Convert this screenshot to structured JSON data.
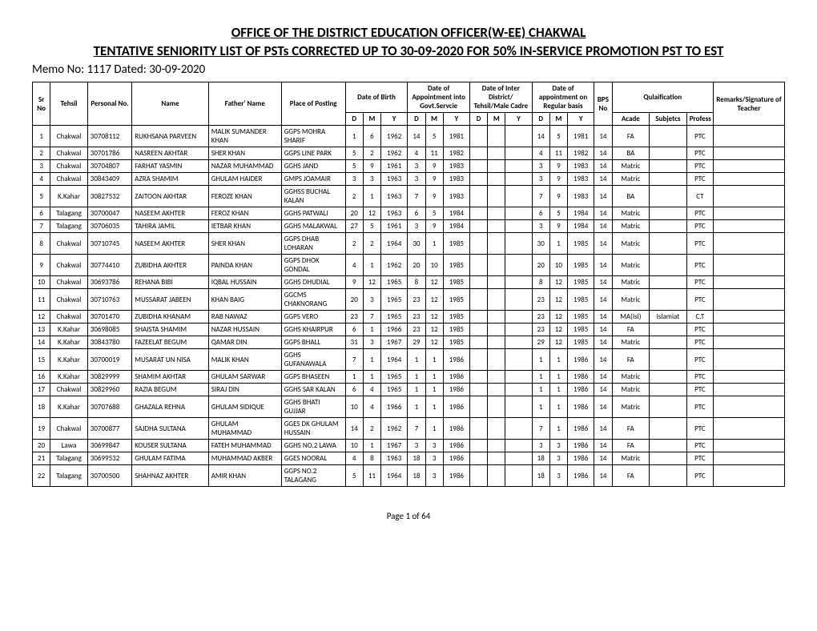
{
  "header": {
    "title": "OFFICE OF THE DISTRICT EDUCATION OFFICER(W-EE) CHAKWAL",
    "subtitle": "TENTATIVE SENIORITY LIST OF PSTs CORRECTED UP TO 30-09-2020 FOR 50% IN-SERVICE PROMOTION PST TO EST",
    "memo": "Memo No:  1117   Dated:   30-09-2020"
  },
  "columns": {
    "sr": "Sr No",
    "tehsil": "Tehsil",
    "pno": "Personal No.",
    "name": "Name",
    "father": "Father' Name",
    "place": "Place of Posting",
    "dob": "Date of Birth",
    "doa_govt": "Date of Appointment into Govt.Servcie",
    "doa_cadre": "Date of Inter District/ Tehsil/Male Cadre",
    "doa_reg": "Date of appointment on Regular basis",
    "bps": "BPS No",
    "qual": "Qulaification",
    "remarks": "Remarks/Signature of Teacher",
    "d": "D",
    "m": "M",
    "y": "Y",
    "acade": "Acade",
    "subj": "Subjetcs",
    "prof": "Profess"
  },
  "rows": [
    {
      "sr": "1",
      "tehsil": "Chakwal",
      "pno": "30708112",
      "name": "RUKHSANA PARVEEN",
      "father": "MALIK SUMANDER KHAN",
      "place": "GGPS MOHRA SHARIF",
      "dob": [
        "1",
        "6",
        "1962"
      ],
      "govt": [
        "14",
        "5",
        "1981"
      ],
      "cadre": [
        "",
        "",
        ""
      ],
      "reg": [
        "14",
        "5",
        "1981"
      ],
      "bps": "14",
      "acade": "FA",
      "subj": "",
      "prof": "PTC"
    },
    {
      "sr": "2",
      "tehsil": "Chakwal",
      "pno": "30701786",
      "name": "NASREEN AKHTAR",
      "father": "SHER KHAN",
      "place": "GGPS LINE PARK",
      "dob": [
        "5",
        "2",
        "1962"
      ],
      "govt": [
        "4",
        "11",
        "1982"
      ],
      "cadre": [
        "",
        "",
        ""
      ],
      "reg": [
        "4",
        "11",
        "1982"
      ],
      "bps": "14",
      "acade": "BA",
      "subj": "",
      "prof": "PTC"
    },
    {
      "sr": "3",
      "tehsil": "Chakwal",
      "pno": "30704807",
      "name": "FARHAT YASMIN",
      "father": "NAZAR MUHAMMAD",
      "place": "GGHS JAND",
      "dob": [
        "5",
        "9",
        "1961"
      ],
      "govt": [
        "3",
        "9",
        "1983"
      ],
      "cadre": [
        "",
        "",
        ""
      ],
      "reg": [
        "3",
        "9",
        "1983"
      ],
      "bps": "14",
      "acade": "Matric",
      "subj": "",
      "prof": "PTC"
    },
    {
      "sr": "4",
      "tehsil": "Chakwal",
      "pno": "30843409",
      "name": "AZRA SHAMIM",
      "father": "GHULAM HAIDER",
      "place": "GMPS JOAMAIR",
      "dob": [
        "3",
        "3",
        "1963"
      ],
      "govt": [
        "3",
        "9",
        "1983"
      ],
      "cadre": [
        "",
        "",
        ""
      ],
      "reg": [
        "3",
        "9",
        "1983"
      ],
      "bps": "14",
      "acade": "Matric",
      "subj": "",
      "prof": "PTC"
    },
    {
      "sr": "5",
      "tehsil": "K.Kahar",
      "pno": "30827532",
      "name": "ZAITOON AKHTAR",
      "father": "FEROZE KHAN",
      "place": "GGHSS BUCHAL KALAN",
      "dob": [
        "2",
        "1",
        "1963"
      ],
      "govt": [
        "7",
        "9",
        "1983"
      ],
      "cadre": [
        "",
        "",
        ""
      ],
      "reg": [
        "7",
        "9",
        "1983"
      ],
      "bps": "14",
      "acade": "BA",
      "subj": "",
      "prof": "CT"
    },
    {
      "sr": "6",
      "tehsil": "Talagang",
      "pno": "30700047",
      "name": "NASEEM AKHTER",
      "father": "FEROZ KHAN",
      "place": "GGHS PATWALI",
      "dob": [
        "20",
        "12",
        "1963"
      ],
      "govt": [
        "6",
        "5",
        "1984"
      ],
      "cadre": [
        "",
        "",
        ""
      ],
      "reg": [
        "6",
        "5",
        "1984"
      ],
      "bps": "14",
      "acade": "Matric",
      "subj": "",
      "prof": "PTC"
    },
    {
      "sr": "7",
      "tehsil": "Talagang",
      "pno": "30706035",
      "name": "TAHIRA JAMIL",
      "father": "IETBAR KHAN",
      "place": "GGHS MALAKWAL",
      "dob": [
        "27",
        "5",
        "1961"
      ],
      "govt": [
        "3",
        "9",
        "1984"
      ],
      "cadre": [
        "",
        "",
        ""
      ],
      "reg": [
        "3",
        "9",
        "1984"
      ],
      "bps": "14",
      "acade": "Matric",
      "subj": "",
      "prof": "PTC"
    },
    {
      "sr": "8",
      "tehsil": "Chakwal",
      "pno": "30710745",
      "name": "NASEEM AKHTER",
      "father": "SHER KHAN",
      "place": "GGPS DHAB LOHARAN",
      "dob": [
        "2",
        "2",
        "1964"
      ],
      "govt": [
        "30",
        "1",
        "1985"
      ],
      "cadre": [
        "",
        "",
        ""
      ],
      "reg": [
        "30",
        "1",
        "1985"
      ],
      "bps": "14",
      "acade": "Matric",
      "subj": "",
      "prof": "PTC"
    },
    {
      "sr": "9",
      "tehsil": "Chakwal",
      "pno": "30774410",
      "name": "ZUBIDHA AKHTER",
      "father": "PAINDA KHAN",
      "place": "GGPS DHOK GONDAL",
      "dob": [
        "4",
        "1",
        "1962"
      ],
      "govt": [
        "20",
        "10",
        "1985"
      ],
      "cadre": [
        "",
        "",
        ""
      ],
      "reg": [
        "20",
        "10",
        "1985"
      ],
      "bps": "14",
      "acade": "Matric",
      "subj": "",
      "prof": "PTC"
    },
    {
      "sr": "10",
      "tehsil": "Chakwal",
      "pno": "30693786",
      "name": "REHANA BIBI",
      "father": "IQBAL HUSSAIN",
      "place": "GGHS DHUDIAL",
      "dob": [
        "9",
        "12",
        "1965"
      ],
      "govt": [
        "8",
        "12",
        "1985"
      ],
      "cadre": [
        "",
        "",
        ""
      ],
      "reg": [
        "8",
        "12",
        "1985"
      ],
      "bps": "14",
      "acade": "Matric",
      "subj": "",
      "prof": "PTC"
    },
    {
      "sr": "11",
      "tehsil": "Chakwal",
      "pno": "30710763",
      "name": "MUSSARAT JABEEN",
      "father": "KHAN BAIG",
      "place": "GGCMS CHAKNORANG",
      "dob": [
        "20",
        "3",
        "1965"
      ],
      "govt": [
        "23",
        "12",
        "1985"
      ],
      "cadre": [
        "",
        "",
        ""
      ],
      "reg": [
        "23",
        "12",
        "1985"
      ],
      "bps": "14",
      "acade": "Matric",
      "subj": "",
      "prof": "PTC"
    },
    {
      "sr": "12",
      "tehsil": "Chakwal",
      "pno": "30701470",
      "name": "ZUBIDHA KHANAM",
      "father": "RAB NAWAZ",
      "place": "GGPS VERO",
      "dob": [
        "23",
        "7",
        "1965"
      ],
      "govt": [
        "23",
        "12",
        "1985"
      ],
      "cadre": [
        "",
        "",
        ""
      ],
      "reg": [
        "23",
        "12",
        "1985"
      ],
      "bps": "14",
      "acade": "MA(Isl)",
      "subj": "Islamiat",
      "prof": "C.T"
    },
    {
      "sr": "13",
      "tehsil": "K.Kahar",
      "pno": "30698085",
      "name": "SHAISTA SHAMIM",
      "father": "NAZAR HUSSAIN",
      "place": "GGHS KHAIRPUR",
      "dob": [
        "6",
        "1",
        "1966"
      ],
      "govt": [
        "23",
        "12",
        "1985"
      ],
      "cadre": [
        "",
        "",
        ""
      ],
      "reg": [
        "23",
        "12",
        "1985"
      ],
      "bps": "14",
      "acade": "FA",
      "subj": "",
      "prof": "PTC"
    },
    {
      "sr": "14",
      "tehsil": "K.Kahar",
      "pno": "30843780",
      "name": "FAZEELAT BEGUM",
      "father": "QAMAR DIN",
      "place": "GGPS BHALL",
      "dob": [
        "31",
        "3",
        "1967"
      ],
      "govt": [
        "29",
        "12",
        "1985"
      ],
      "cadre": [
        "",
        "",
        ""
      ],
      "reg": [
        "29",
        "12",
        "1985"
      ],
      "bps": "14",
      "acade": "Matric",
      "subj": "",
      "prof": "PTC"
    },
    {
      "sr": "15",
      "tehsil": "K.Kahar",
      "pno": "30700019",
      "name": "MUSARAT UN NISA",
      "father": "MALIK KHAN",
      "place": "GGHS GUFANAWALA",
      "dob": [
        "7",
        "1",
        "1964"
      ],
      "govt": [
        "1",
        "1",
        "1986"
      ],
      "cadre": [
        "",
        "",
        ""
      ],
      "reg": [
        "1",
        "1",
        "1986"
      ],
      "bps": "14",
      "acade": "FA",
      "subj": "",
      "prof": "PTC"
    },
    {
      "sr": "16",
      "tehsil": "K.Kahar",
      "pno": "30829999",
      "name": "SHAMIM AKHTAR",
      "father": "GHULAM SARWAR",
      "place": "GGPS BHASEEN",
      "dob": [
        "1",
        "1",
        "1965"
      ],
      "govt": [
        "1",
        "1",
        "1986"
      ],
      "cadre": [
        "",
        "",
        ""
      ],
      "reg": [
        "1",
        "1",
        "1986"
      ],
      "bps": "14",
      "acade": "Matric",
      "subj": "",
      "prof": "PTC"
    },
    {
      "sr": "17",
      "tehsil": "Chakwal",
      "pno": "30829960",
      "name": "RAZIA BEGUM",
      "father": "SIRAJ DIN",
      "place": "GGHS SAR KALAN",
      "dob": [
        "6",
        "4",
        "1965"
      ],
      "govt": [
        "1",
        "1",
        "1986"
      ],
      "cadre": [
        "",
        "",
        ""
      ],
      "reg": [
        "1",
        "1",
        "1986"
      ],
      "bps": "14",
      "acade": "Matric",
      "subj": "",
      "prof": "PTC"
    },
    {
      "sr": "18",
      "tehsil": "K.Kahar",
      "pno": "30707688",
      "name": "GHAZALA REHNA",
      "father": "GHULAM SIDIQUE",
      "place": "GGHS BHATI GUJJAR",
      "dob": [
        "10",
        "4",
        "1966"
      ],
      "govt": [
        "1",
        "1",
        "1986"
      ],
      "cadre": [
        "",
        "",
        ""
      ],
      "reg": [
        "1",
        "1",
        "1986"
      ],
      "bps": "14",
      "acade": "Matric",
      "subj": "",
      "prof": "PTC"
    },
    {
      "sr": "19",
      "tehsil": "Chakwal",
      "pno": "30700877",
      "name": "SAJDHA SULTANA",
      "father": "GHULAM MUHAMMAD",
      "place": "GGES DK GHULAM HUSSAIN",
      "dob": [
        "14",
        "2",
        "1962"
      ],
      "govt": [
        "7",
        "1",
        "1986"
      ],
      "cadre": [
        "",
        "",
        ""
      ],
      "reg": [
        "7",
        "1",
        "1986"
      ],
      "bps": "14",
      "acade": "FA",
      "subj": "",
      "prof": "PTC"
    },
    {
      "sr": "20",
      "tehsil": "Lawa",
      "pno": "30699847",
      "name": "KOUSER SULTANA",
      "father": "FATEH MUHAMMAD",
      "place": "GGHS NO.2 LAWA",
      "dob": [
        "10",
        "1",
        "1967"
      ],
      "govt": [
        "3",
        "3",
        "1986"
      ],
      "cadre": [
        "",
        "",
        ""
      ],
      "reg": [
        "3",
        "3",
        "1986"
      ],
      "bps": "14",
      "acade": "FA",
      "subj": "",
      "prof": "PTC"
    },
    {
      "sr": "21",
      "tehsil": "Talagang",
      "pno": "30699532",
      "name": "GHULAM FATIMA",
      "father": "MUHAMMAD AKBER",
      "place": "GGES NOORAL",
      "dob": [
        "4",
        "8",
        "1963"
      ],
      "govt": [
        "18",
        "3",
        "1986"
      ],
      "cadre": [
        "",
        "",
        ""
      ],
      "reg": [
        "18",
        "3",
        "1986"
      ],
      "bps": "14",
      "acade": "Matric",
      "subj": "",
      "prof": "PTC"
    },
    {
      "sr": "22",
      "tehsil": "Talagang",
      "pno": "30700500",
      "name": "SHAHNAZ AKHTER",
      "father": "AMIR KHAN",
      "place": "GGPS NO.2 TALAGANG",
      "dob": [
        "5",
        "11",
        "1964"
      ],
      "govt": [
        "18",
        "3",
        "1986"
      ],
      "cadre": [
        "",
        "",
        ""
      ],
      "reg": [
        "18",
        "3",
        "1986"
      ],
      "bps": "14",
      "acade": "FA",
      "subj": "",
      "prof": "PTC"
    }
  ],
  "footer": "Page 1 of 64"
}
